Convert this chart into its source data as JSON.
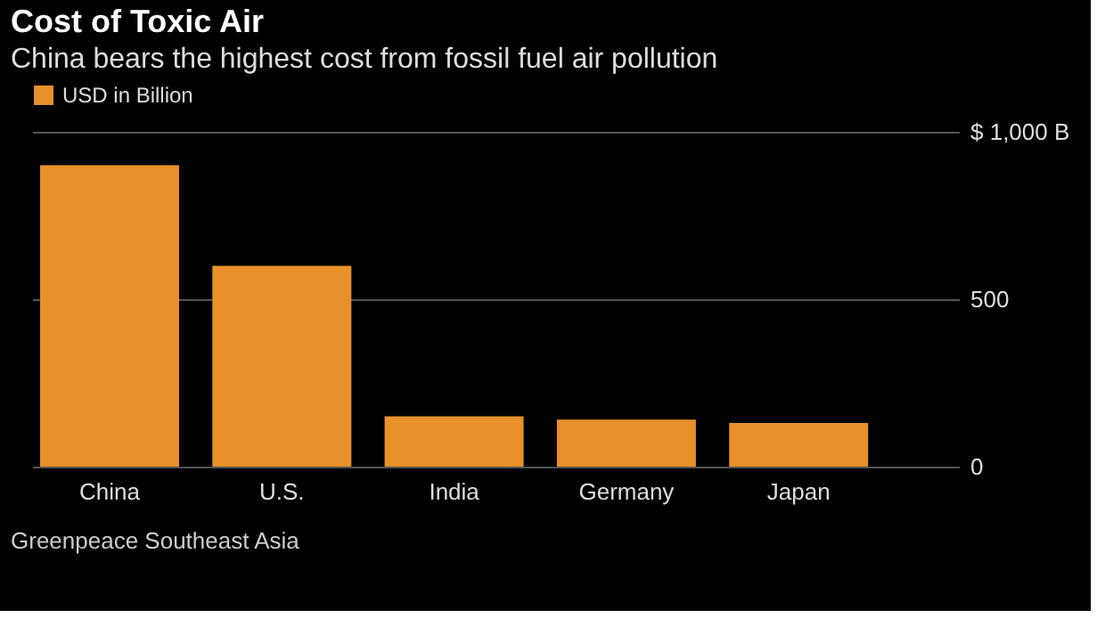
{
  "chart_data": {
    "type": "bar",
    "title": "Cost of Toxic Air",
    "subtitle": "China bears the highest cost from fossil fuel air pollution",
    "categories": [
      "China",
      "U.S.",
      "India",
      "Germany",
      "Japan"
    ],
    "series": [
      {
        "name": "USD in Billion",
        "color": "#e8912a",
        "values": [
          900,
          600,
          150,
          140,
          130
        ]
      }
    ],
    "ylim": [
      0,
      1000
    ],
    "yticks": [
      0,
      500,
      {
        "value": 1000,
        "label": "$ 1,000 B"
      }
    ],
    "grid": "y",
    "legend": "top left",
    "annotations": [
      "Greenpeace Southeast Asia"
    ]
  }
}
